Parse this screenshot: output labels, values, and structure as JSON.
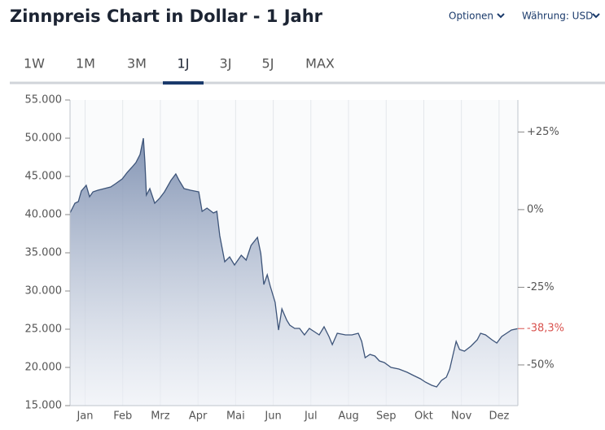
{
  "header": {
    "title": "Zinnpreis Chart in Dollar - 1 Jahr",
    "options": "Optionen",
    "currency": "Währung: USD"
  },
  "tabs": {
    "items": [
      "1W",
      "1M",
      "3M",
      "1J",
      "3J",
      "5J",
      "MAX"
    ],
    "active": "1J"
  },
  "chart_data": {
    "type": "area",
    "xlim": [
      0.1,
      12.0
    ],
    "xticks": [
      {
        "value": 0.5,
        "label": "Jan"
      },
      {
        "value": 1.5,
        "label": "Feb"
      },
      {
        "value": 2.5,
        "label": "Mrz"
      },
      {
        "value": 3.5,
        "label": "Apr"
      },
      {
        "value": 4.5,
        "label": "Mai"
      },
      {
        "value": 5.5,
        "label": "Jun"
      },
      {
        "value": 6.5,
        "label": "Jul"
      },
      {
        "value": 7.5,
        "label": "Aug"
      },
      {
        "value": 8.5,
        "label": "Sep"
      },
      {
        "value": 9.5,
        "label": "Okt"
      },
      {
        "value": 10.5,
        "label": "Nov"
      },
      {
        "value": 11.5,
        "label": "Dez"
      }
    ],
    "ylim": [
      15000,
      55000
    ],
    "yticks": [
      {
        "value": 15000,
        "label": "15.000"
      },
      {
        "value": 20000,
        "label": "20.000"
      },
      {
        "value": 25000,
        "label": "25.000"
      },
      {
        "value": 30000,
        "label": "30.000"
      },
      {
        "value": 35000,
        "label": "35.000"
      },
      {
        "value": 40000,
        "label": "40.000"
      },
      {
        "value": 45000,
        "label": "45.000"
      },
      {
        "value": 50000,
        "label": "50.000"
      },
      {
        "value": 55000,
        "label": "55.000"
      }
    ],
    "y2lim": [
      -63.1,
      35.3
    ],
    "y2ticks": [
      {
        "value": 25,
        "label": "+25%"
      },
      {
        "value": 0,
        "label": "0%"
      },
      {
        "value": -25,
        "label": "-25%"
      },
      {
        "value": -50,
        "label": "-50%"
      }
    ],
    "annotation": {
      "value": -38.3,
      "label": "-38,3%",
      "color": "#d9534f"
    },
    "grid": true,
    "series": [
      {
        "color": "#3d5479",
        "x": [
          0.1,
          0.23,
          0.32,
          0.4,
          0.53,
          0.62,
          0.71,
          0.84,
          1.01,
          1.18,
          1.31,
          1.49,
          1.62,
          1.74,
          1.85,
          1.96,
          2.05,
          2.09,
          2.13,
          2.22,
          2.35,
          2.48,
          2.61,
          2.78,
          2.91,
          3.0,
          3.13,
          3.3,
          3.52,
          3.61,
          3.74,
          3.91,
          4.0,
          4.08,
          4.21,
          4.34,
          4.47,
          4.65,
          4.78,
          4.91,
          5.08,
          5.17,
          5.25,
          5.34,
          5.42,
          5.55,
          5.64,
          5.73,
          5.86,
          5.94,
          6.07,
          6.2,
          6.33,
          6.46,
          6.59,
          6.72,
          6.85,
          6.98,
          7.07,
          7.2,
          7.42,
          7.59,
          7.76,
          7.85,
          7.94,
          8.07,
          8.2,
          8.32,
          8.45,
          8.63,
          8.84,
          9.06,
          9.23,
          9.41,
          9.54,
          9.71,
          9.84,
          9.97,
          10.1,
          10.19,
          10.27,
          10.36,
          10.45,
          10.58,
          10.75,
          10.92,
          11.01,
          11.14,
          11.31,
          11.44,
          11.57,
          11.7,
          11.83,
          12.0
        ],
        "values": [
          40210,
          41490,
          41700,
          43090,
          43830,
          42340,
          42980,
          43190,
          43400,
          43620,
          44040,
          44680,
          45530,
          46170,
          46810,
          47870,
          50000,
          46810,
          42550,
          43400,
          41490,
          42130,
          42980,
          44470,
          45320,
          44470,
          43400,
          43190,
          42980,
          40430,
          40850,
          40210,
          40430,
          37230,
          33830,
          34470,
          33400,
          34680,
          34040,
          35960,
          37020,
          34890,
          30850,
          32130,
          30640,
          28510,
          24890,
          27660,
          26170,
          25530,
          25110,
          25110,
          24260,
          25110,
          24680,
          24260,
          25320,
          24040,
          22980,
          24470,
          24260,
          24260,
          24470,
          23400,
          21280,
          21700,
          21490,
          20850,
          20640,
          20000,
          19790,
          19360,
          18940,
          18510,
          18090,
          17660,
          17450,
          18300,
          18720,
          19790,
          21490,
          23400,
          22340,
          22130,
          22770,
          23620,
          24470,
          24260,
          23620,
          23190,
          24040,
          24470,
          24890,
          25070
        ]
      }
    ]
  }
}
